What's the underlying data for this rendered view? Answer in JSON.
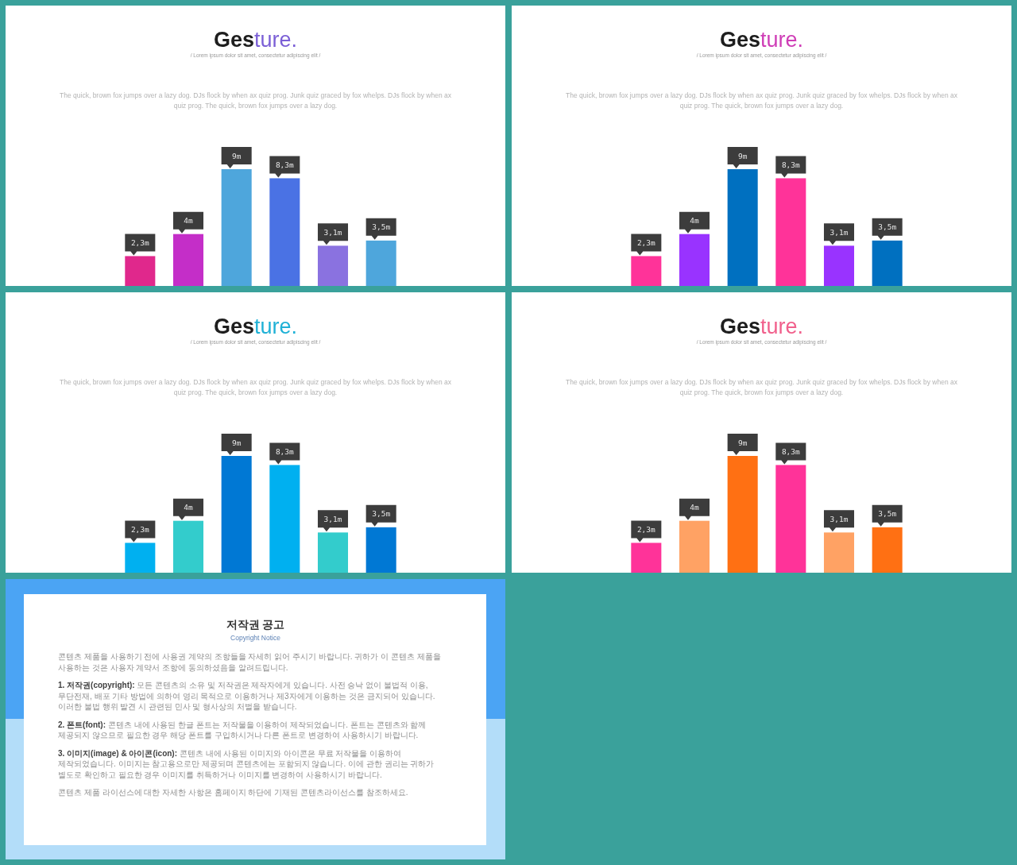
{
  "chart_data": [
    {
      "type": "bar",
      "title": "Gesture.",
      "subtitle": "/ Lorem ipsum dolor sit amet, consectetur adipiscing elit /",
      "annotations": [
        "The quick, brown fox jumps over a lazy dog. DJs flock by when ax quiz prog. Junk quiz graced by fox whelps. DJs flock by when ax quiz prog. The quick, brown fox jumps over a lazy dog."
      ],
      "categories": [
        null,
        null,
        null,
        null,
        null,
        null
      ],
      "values": [
        2.3,
        4,
        9,
        8.3,
        3.1,
        3.5
      ],
      "value_labels": [
        "2,3m",
        "4m",
        "9m",
        "8,3m",
        "3,1m",
        "3,5m"
      ],
      "colors": [
        "#e0288c",
        "#c42ec8",
        "#4ea6dc",
        "#4a72e4",
        "#8a72e0",
        "#4ea6dc"
      ]
    },
    {
      "type": "bar",
      "title": "Gesture.",
      "subtitle": "/ Lorem ipsum dolor sit amet, consectetur adipiscing elit /",
      "annotations": [
        "The quick, brown fox jumps over a lazy dog. DJs flock by when ax quiz prog. Junk quiz graced by fox whelps. DJs flock by when ax quiz prog. The quick, brown fox jumps over a lazy dog."
      ],
      "categories": [
        null,
        null,
        null,
        null,
        null,
        null
      ],
      "values": [
        2.3,
        4,
        9,
        8.3,
        3.1,
        3.5
      ],
      "value_labels": [
        "2,3m",
        "4m",
        "9m",
        "8,3m",
        "3,1m",
        "3,5m"
      ],
      "colors": [
        "#ff3399",
        "#9933ff",
        "#0070c0",
        "#ff3399",
        "#9933ff",
        "#0070c0"
      ]
    },
    {
      "type": "bar",
      "title": "Gesture.",
      "subtitle": "/ Lorem ipsum dolor sit amet, consectetur adipiscing elit /",
      "annotations": [
        "The quick, brown fox jumps over a lazy dog. DJs flock by when ax quiz prog. Junk quiz graced by fox whelps. DJs flock by when ax quiz prog. The quick, brown fox jumps over a lazy dog."
      ],
      "categories": [
        null,
        null,
        null,
        null,
        null,
        null
      ],
      "values": [
        2.3,
        4,
        9,
        8.3,
        3.1,
        3.5
      ],
      "value_labels": [
        "2,3m",
        "4m",
        "9m",
        "8,3m",
        "3,1m",
        "3,5m"
      ],
      "colors": [
        "#00b0f0",
        "#33cccc",
        "#0078d4",
        "#00b0f0",
        "#33cccc",
        "#0078d4"
      ]
    },
    {
      "type": "bar",
      "title": "Gesture.",
      "subtitle": "/ Lorem ipsum dolor sit amet, consectetur adipiscing elit /",
      "annotations": [
        "The quick, brown fox jumps over a lazy dog. DJs flock by when ax quiz prog. Junk quiz graced by fox whelps. DJs flock by when ax quiz prog. The quick, brown fox jumps over a lazy dog."
      ],
      "categories": [
        null,
        null,
        null,
        null,
        null,
        null
      ],
      "values": [
        2.3,
        4,
        9,
        8.3,
        3.1,
        3.5
      ],
      "value_labels": [
        "2,3m",
        "4m",
        "9m",
        "8,3m",
        "3,1m",
        "3,5m"
      ],
      "colors": [
        "#ff3399",
        "#ffa264",
        "#ff7013",
        "#ff3399",
        "#ffa264",
        "#ff7013"
      ]
    },
    {
      "type": "other",
      "title": "저작권 공고",
      "subtitle": "Copyright Notice",
      "annotations": [
        "콘텐츠 제품을 사용하기 전에 사용권 계약의 조항들을 자세히 읽어 주시기 바랍니다. 귀하가 이 콘텐츠 제품을 사용하는 것은 사용자 계약서 조항에 동의하셨음을 알려드립니다.",
        "1. 저작권(copyright): 모든 콘텐츠의 소유 및 저작권은 제작자에게 있습니다. 사전 승낙 없이 불법적 이용, 무단전재, 배포 기타 방법에 의하여 영리 목적으로 이용하거나 제3자에게 이용하는 것은 금지되어 있습니다. 이러한 불법 행위 발견 시 관련된 민사 및 형사상의 처벌을 받습니다.",
        "2. 폰트(font): 콘텐츠 내에 사용된 한글 폰트는 저작물을 이용하여 제작되었습니다. 폰트는 콘텐츠와 함께 제공되지 않으므로 필요한 경우 해당 폰트를 구입하시거나 다른 폰트로 변경하여 사용하시기 바랍니다.",
        "3. 이미지(image) & 아이콘(icon): 콘텐츠 내에 사용된 이미지와 아이콘은 무료 저작물을 이용하여 제작되었습니다. 이미지는 참고용으로만 제공되며 콘텐츠에는 포함되지 않습니다. 이에 관한 권리는 귀하가 별도로 확인하고 필요한 경우 이미지를 취득하거나 이미지를 변경하여 사용하시기 바랍니다.",
        "콘텐츠 제품 라이선스에 대한 자세한 사항은 홈페이지 하단에 기재된 콘텐츠라이선스를 참조하세요."
      ]
    }
  ]
}
